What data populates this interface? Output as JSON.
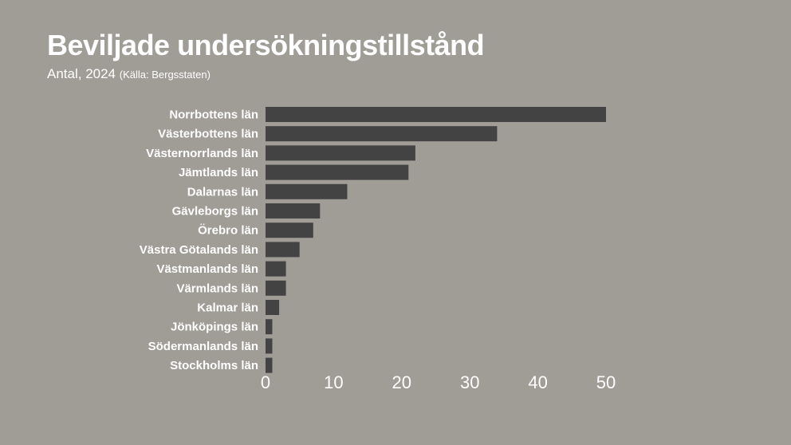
{
  "chart_data": {
    "type": "bar",
    "orientation": "horizontal",
    "title": "Beviljade undersökningstillstånd",
    "subtitle": "Antal, 2024",
    "source": "(Källa: Bergsstaten)",
    "categories": [
      "Norrbottens län",
      "Västerbottens län",
      "Västernorrlands län",
      "Jämtlands län",
      "Dalarnas län",
      "Gävleborgs län",
      "Örebro län",
      "Västra Götalands län",
      "Västmanlands län",
      "Värmlands län",
      "Kalmar län",
      "Jönköpings län",
      "Södermanlands län",
      "Stockholms län"
    ],
    "values": [
      50,
      34,
      22,
      21,
      12,
      8,
      7,
      5,
      3,
      3,
      2,
      1,
      1,
      1
    ],
    "xlim": [
      0,
      50
    ],
    "xticks": [
      0,
      10,
      20,
      30,
      40,
      50
    ],
    "grid": false,
    "legend": "none",
    "colors": {
      "background": "#a09d97",
      "bar": "#444343",
      "text": "#ffffff"
    }
  }
}
